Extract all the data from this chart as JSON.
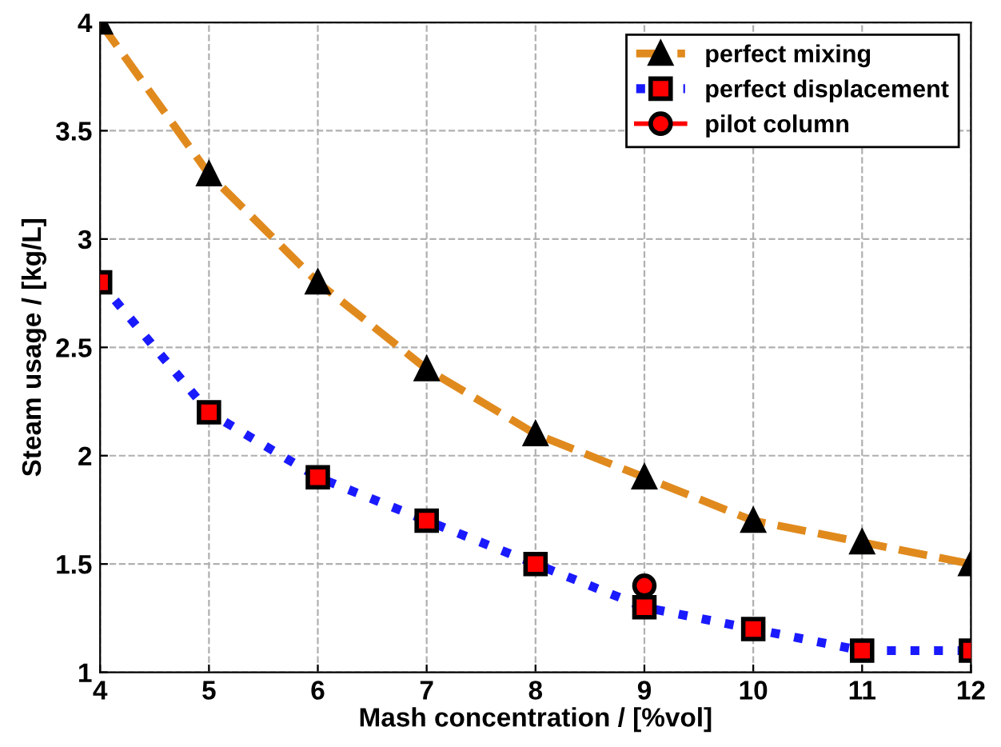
{
  "chart_data": {
    "type": "line",
    "xlabel": "Mash concentration / [%vol]",
    "ylabel": "Steam usage / [kg/L]",
    "xlim": [
      4,
      12
    ],
    "xticks": [
      4,
      5,
      6,
      7,
      8,
      9,
      10,
      11,
      12
    ],
    "ylim": [
      1,
      4
    ],
    "yticks": [
      1,
      1.5,
      2,
      2.5,
      3,
      3.5,
      4
    ],
    "grid": true,
    "legend": "top right",
    "series": [
      {
        "name": "perfect mixing",
        "color": "#e08a1e",
        "marker": "triangle",
        "line_style": "dashed",
        "x": [
          4,
          5,
          6,
          7,
          8,
          9,
          10,
          11,
          12
        ],
        "values": [
          4.0,
          3.3,
          2.8,
          2.4,
          2.1,
          1.9,
          1.7,
          1.6,
          1.5
        ]
      },
      {
        "name": "perfect displacement",
        "color": "#1a1aff",
        "marker": "square",
        "line_style": "dotted",
        "x": [
          4,
          5,
          6,
          7,
          8,
          9,
          10,
          11,
          12
        ],
        "values": [
          2.8,
          2.2,
          1.9,
          1.7,
          1.5,
          1.3,
          1.2,
          1.1,
          1.1
        ]
      },
      {
        "name": "pilot column",
        "type": "scatter",
        "color": "#ff0000",
        "marker": "circle",
        "x": [
          9
        ],
        "values": [
          1.4
        ]
      }
    ]
  }
}
